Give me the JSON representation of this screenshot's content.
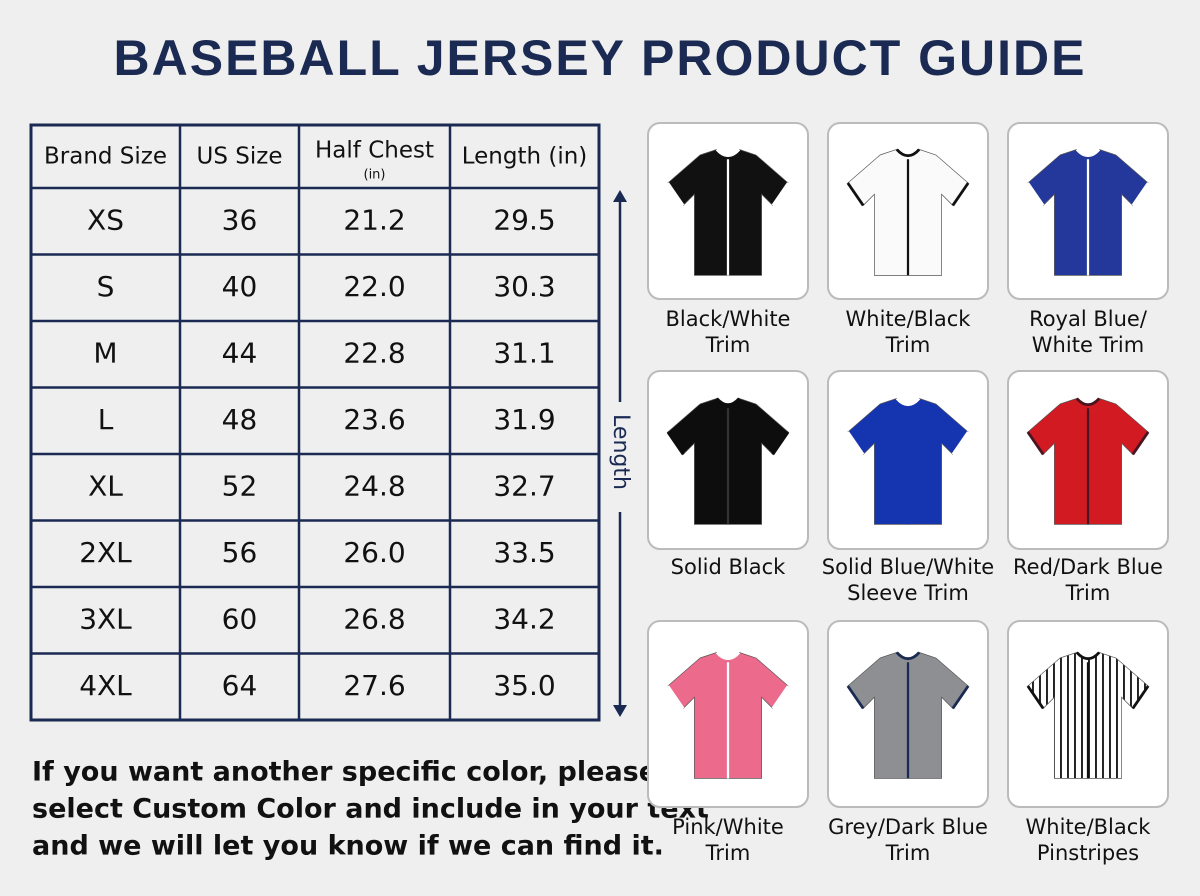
{
  "header": {
    "title": "BASEBALL JERSEY PRODUCT GUIDE"
  },
  "table": {
    "columns": [
      "Brand Size",
      "US Size",
      "Half Chest",
      "Length (in)"
    ],
    "column_note": "(in)",
    "rows": [
      [
        "XS",
        "36",
        "21.2",
        "29.5"
      ],
      [
        "S",
        "40",
        "22.0",
        "30.3"
      ],
      [
        "M",
        "44",
        "22.8",
        "31.1"
      ],
      [
        "L",
        "48",
        "23.6",
        "31.9"
      ],
      [
        "XL",
        "52",
        "24.8",
        "32.7"
      ],
      [
        "2XL",
        "56",
        "26.0",
        "33.5"
      ],
      [
        "3XL",
        "60",
        "26.8",
        "34.2"
      ],
      [
        "4XL",
        "64",
        "27.6",
        "35.0"
      ]
    ]
  },
  "length_label": "Length",
  "note": [
    "If you want another specific color, please",
    "select Custom Color and include in your text",
    "and we will let you know if we can find it."
  ],
  "products": [
    {
      "label": [
        "Black/White",
        "Trim"
      ]
    },
    {
      "label": [
        "White/Black",
        "Trim"
      ]
    },
    {
      "label": [
        "Royal Blue/",
        "White Trim"
      ]
    },
    {
      "label": [
        "Solid Black"
      ]
    },
    {
      "label": [
        "Solid Blue/White",
        "Sleeve Trim"
      ]
    },
    {
      "label": [
        "Red/Dark Blue",
        "Trim"
      ]
    },
    {
      "label": [
        "Pink/White",
        "Trim"
      ]
    },
    {
      "label": [
        "Grey/Dark Blue",
        "Trim"
      ]
    },
    {
      "label": [
        "White/Black",
        "Pinstripes"
      ]
    }
  ]
}
